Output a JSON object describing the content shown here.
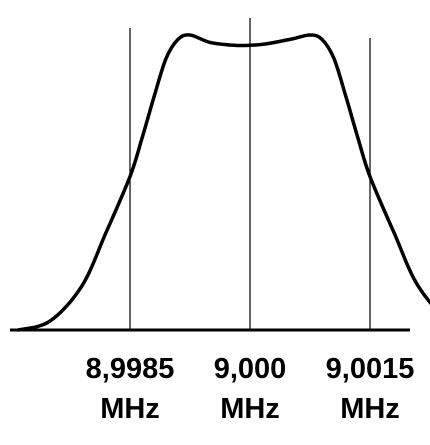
{
  "chart_data": {
    "type": "line",
    "title": "",
    "xlabel": "",
    "ylabel": "",
    "xlim": [
      8.997,
      9.002
    ],
    "ylim": [
      0,
      1
    ],
    "grid": false,
    "legend": "none",
    "unit_label": "MHz",
    "x_ticks": [
      {
        "value": 8.9985,
        "label": "8,9985"
      },
      {
        "value": 9.0,
        "label": "9,000"
      },
      {
        "value": 9.0015,
        "label": "9,0015"
      }
    ],
    "series": [
      {
        "color": "#000000",
        "x": [
          8.9971,
          8.9975,
          8.9979,
          8.9982,
          8.9985,
          8.99865,
          8.9988,
          8.99895,
          8.9991,
          8.99925,
          8.9995,
          8.9998,
          9.0,
          9.0002,
          9.0005,
          9.00075,
          9.0009,
          9.00105,
          9.0012,
          9.00135,
          9.0015,
          9.0018,
          9.0021,
          9.0025,
          9.0029
        ],
        "y": [
          0.0,
          0.03,
          0.15,
          0.33,
          0.52,
          0.65,
          0.79,
          0.92,
          0.985,
          1.0,
          0.975,
          0.965,
          0.965,
          0.97,
          0.985,
          1.0,
          0.985,
          0.92,
          0.79,
          0.65,
          0.52,
          0.33,
          0.15,
          0.03,
          0.0
        ]
      }
    ]
  },
  "colors": {
    "background": "#ffffff",
    "curve": "#000000",
    "axis": "#000000",
    "marker_lines": "#000000"
  }
}
